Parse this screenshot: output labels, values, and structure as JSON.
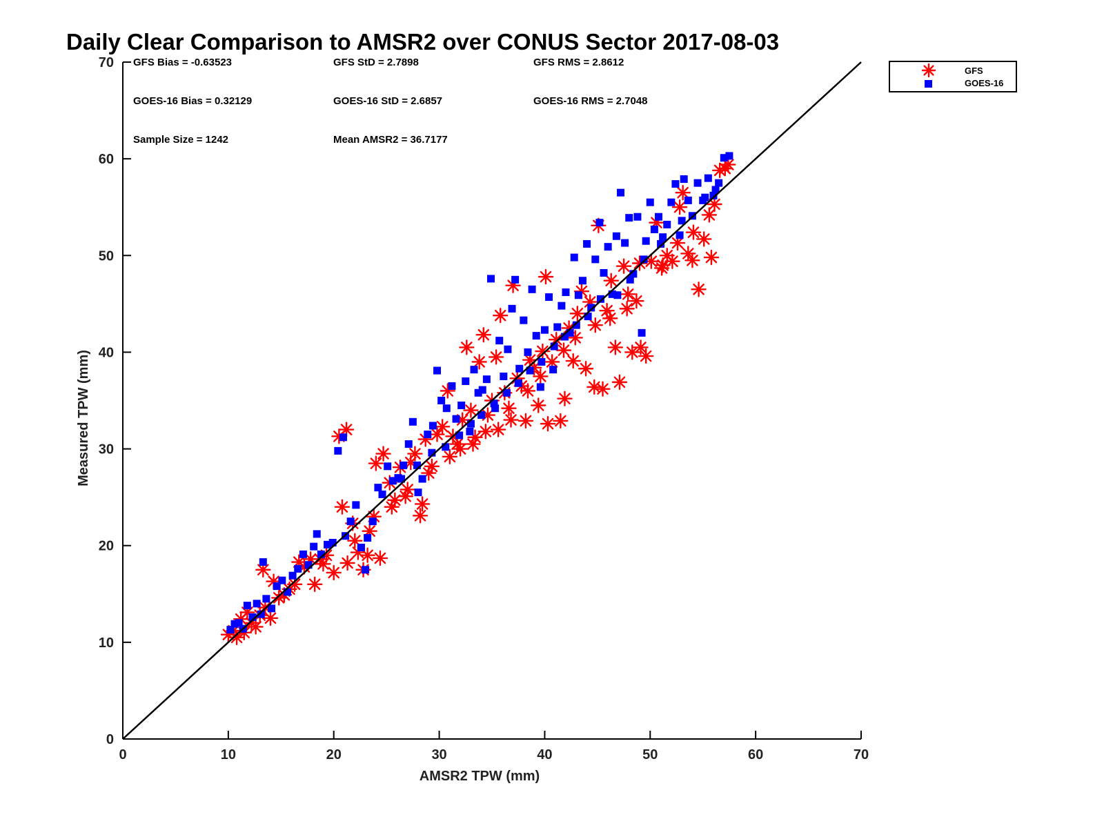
{
  "chart_data": {
    "type": "scatter",
    "title": "Daily Clear Comparison to AMSR2 over CONUS Sector 2017-08-03",
    "xlabel": "AMSR2 TPW (mm)",
    "ylabel": "Measured TPW (mm)",
    "xlim": [
      0,
      70
    ],
    "ylim": [
      0,
      70
    ],
    "xticks": [
      0,
      10,
      20,
      30,
      40,
      50,
      60,
      70
    ],
    "yticks": [
      0,
      10,
      20,
      30,
      40,
      50,
      60,
      70
    ],
    "grid": false,
    "legend_position": "outside top-right",
    "reference_line": {
      "x": [
        0,
        70
      ],
      "y": [
        0,
        70
      ],
      "color": "#000000"
    },
    "stats": [
      "GFS Bias = -0.63523",
      "GFS StD = 2.7898",
      "GFS RMS = 2.8612",
      "GOES-16 Bias = 0.32129",
      "GOES-16 StD = 2.6857",
      "GOES-16 RMS = 2.7048",
      "Sample Size = 1242",
      "Mean AMSR2 = 36.7177"
    ],
    "series": [
      {
        "name": "GFS",
        "marker": "asterisk",
        "color": "#ff0000",
        "points": [
          [
            10.0,
            10.8
          ],
          [
            10.5,
            11.2
          ],
          [
            10.8,
            10.5
          ],
          [
            11.2,
            12.4
          ],
          [
            11.5,
            11.0
          ],
          [
            11.8,
            13.1
          ],
          [
            12.2,
            12.0
          ],
          [
            12.6,
            11.6
          ],
          [
            13.0,
            12.8
          ],
          [
            13.3,
            17.5
          ],
          [
            13.5,
            13.6
          ],
          [
            14.0,
            12.5
          ],
          [
            14.3,
            16.3
          ],
          [
            14.8,
            14.6
          ],
          [
            15.3,
            14.9
          ],
          [
            15.8,
            15.5
          ],
          [
            16.3,
            16.0
          ],
          [
            16.7,
            18.3
          ],
          [
            17.2,
            17.8
          ],
          [
            17.8,
            18.6
          ],
          [
            18.2,
            16.0
          ],
          [
            18.7,
            18.6
          ],
          [
            19.3,
            19.0
          ],
          [
            20.0,
            17.2
          ],
          [
            20.5,
            31.3
          ],
          [
            20.8,
            24.0
          ],
          [
            21.2,
            32.0
          ],
          [
            21.3,
            18.2
          ],
          [
            21.8,
            22.3
          ],
          [
            22.3,
            19.3
          ],
          [
            22.8,
            17.5
          ],
          [
            23.2,
            19.0
          ],
          [
            23.4,
            21.5
          ],
          [
            23.8,
            23.0
          ],
          [
            24.0,
            28.5
          ],
          [
            24.4,
            18.7
          ],
          [
            24.7,
            29.5
          ],
          [
            25.3,
            26.5
          ],
          [
            25.8,
            24.7
          ],
          [
            26.3,
            28.1
          ],
          [
            26.8,
            25.1
          ],
          [
            27.3,
            28.6
          ],
          [
            27.7,
            29.5
          ],
          [
            28.2,
            23.1
          ],
          [
            28.4,
            24.3
          ],
          [
            28.7,
            31.0
          ],
          [
            29.3,
            28.2
          ],
          [
            29.8,
            31.5
          ],
          [
            30.3,
            32.3
          ],
          [
            30.8,
            36.0
          ],
          [
            31.3,
            31.3
          ],
          [
            31.7,
            30.5
          ],
          [
            32.2,
            33.0
          ],
          [
            32.6,
            40.5
          ],
          [
            33.0,
            34.0
          ],
          [
            33.4,
            31.2
          ],
          [
            33.8,
            39.0
          ],
          [
            34.2,
            41.8
          ],
          [
            34.6,
            33.5
          ],
          [
            35.0,
            35.0
          ],
          [
            35.4,
            39.5
          ],
          [
            35.8,
            43.8
          ],
          [
            36.2,
            35.8
          ],
          [
            36.6,
            34.2
          ],
          [
            37.0,
            46.9
          ],
          [
            37.4,
            37.3
          ],
          [
            37.8,
            36.5
          ],
          [
            38.2,
            32.9
          ],
          [
            38.6,
            39.2
          ],
          [
            39.0,
            38.4
          ],
          [
            39.4,
            34.5
          ],
          [
            39.8,
            40.1
          ],
          [
            40.1,
            47.8
          ],
          [
            40.3,
            32.6
          ],
          [
            40.7,
            39.0
          ],
          [
            41.1,
            41.3
          ],
          [
            41.5,
            32.9
          ],
          [
            41.9,
            35.2
          ],
          [
            42.3,
            42.5
          ],
          [
            42.7,
            39.1
          ],
          [
            43.1,
            44.0
          ],
          [
            43.5,
            46.3
          ],
          [
            43.9,
            38.3
          ],
          [
            44.3,
            45.2
          ],
          [
            44.7,
            36.4
          ],
          [
            45.1,
            53.1
          ],
          [
            45.5,
            36.2
          ],
          [
            45.9,
            44.3
          ],
          [
            46.3,
            47.4
          ],
          [
            46.7,
            40.5
          ],
          [
            47.1,
            36.9
          ],
          [
            47.5,
            48.9
          ],
          [
            47.9,
            46.0
          ],
          [
            48.3,
            40.0
          ],
          [
            48.7,
            45.3
          ],
          [
            49.1,
            40.5
          ],
          [
            49.6,
            39.6
          ],
          [
            50.1,
            49.4
          ],
          [
            50.6,
            53.4
          ],
          [
            51.1,
            48.7
          ],
          [
            51.6,
            50.0
          ],
          [
            52.1,
            49.4
          ],
          [
            52.6,
            51.3
          ],
          [
            53.1,
            56.5
          ],
          [
            53.6,
            50.2
          ],
          [
            54.1,
            52.4
          ],
          [
            54.6,
            46.5
          ],
          [
            55.1,
            51.7
          ],
          [
            55.6,
            54.2
          ],
          [
            56.1,
            55.3
          ],
          [
            56.6,
            58.8
          ],
          [
            57.1,
            59.0
          ],
          [
            57.4,
            59.4
          ],
          [
            55.8,
            49.8
          ],
          [
            54.0,
            49.5
          ],
          [
            52.8,
            55.0
          ],
          [
            51.2,
            49.0
          ],
          [
            49.0,
            49.2
          ],
          [
            47.8,
            44.5
          ],
          [
            46.2,
            43.5
          ],
          [
            44.8,
            42.8
          ],
          [
            42.9,
            41.5
          ],
          [
            41.8,
            40.2
          ],
          [
            39.6,
            37.5
          ],
          [
            38.4,
            36.0
          ],
          [
            36.8,
            33.0
          ],
          [
            35.6,
            32.0
          ],
          [
            34.4,
            31.8
          ],
          [
            33.2,
            30.5
          ],
          [
            32.0,
            30.0
          ],
          [
            31.0,
            29.2
          ],
          [
            29.0,
            27.5
          ],
          [
            27.0,
            25.8
          ],
          [
            25.5,
            24.0
          ],
          [
            22.0,
            20.5
          ],
          [
            19.0,
            18.1
          ]
        ]
      },
      {
        "name": "GOES-16",
        "marker": "square",
        "color": "#0000ff",
        "points": [
          [
            10.2,
            11.3
          ],
          [
            10.6,
            11.9
          ],
          [
            11.0,
            12.0
          ],
          [
            11.4,
            11.4
          ],
          [
            11.8,
            13.8
          ],
          [
            12.3,
            12.6
          ],
          [
            12.7,
            14.0
          ],
          [
            13.1,
            12.9
          ],
          [
            13.3,
            18.3
          ],
          [
            13.6,
            14.5
          ],
          [
            14.1,
            13.5
          ],
          [
            14.6,
            15.8
          ],
          [
            15.1,
            16.4
          ],
          [
            15.6,
            15.2
          ],
          [
            16.1,
            16.9
          ],
          [
            16.6,
            17.6
          ],
          [
            17.1,
            19.1
          ],
          [
            17.6,
            18.0
          ],
          [
            18.1,
            19.9
          ],
          [
            18.4,
            21.2
          ],
          [
            18.8,
            19.1
          ],
          [
            19.4,
            20.1
          ],
          [
            19.9,
            20.3
          ],
          [
            20.4,
            29.8
          ],
          [
            20.9,
            31.2
          ],
          [
            21.1,
            21.0
          ],
          [
            21.6,
            22.5
          ],
          [
            22.1,
            24.2
          ],
          [
            22.6,
            19.8
          ],
          [
            23.0,
            17.5
          ],
          [
            23.2,
            20.8
          ],
          [
            23.7,
            22.5
          ],
          [
            24.2,
            26.0
          ],
          [
            24.6,
            25.3
          ],
          [
            25.1,
            28.2
          ],
          [
            25.6,
            26.7
          ],
          [
            26.1,
            27.0
          ],
          [
            26.6,
            28.3
          ],
          [
            27.1,
            30.5
          ],
          [
            27.5,
            32.8
          ],
          [
            28.0,
            25.5
          ],
          [
            28.4,
            26.9
          ],
          [
            28.9,
            31.5
          ],
          [
            29.4,
            32.4
          ],
          [
            29.8,
            38.1
          ],
          [
            30.2,
            35.0
          ],
          [
            30.7,
            34.2
          ],
          [
            31.2,
            36.5
          ],
          [
            31.6,
            33.1
          ],
          [
            32.1,
            34.5
          ],
          [
            32.5,
            37.0
          ],
          [
            32.9,
            31.8
          ],
          [
            33.3,
            38.2
          ],
          [
            33.7,
            35.8
          ],
          [
            34.1,
            36.1
          ],
          [
            34.5,
            37.2
          ],
          [
            34.9,
            47.6
          ],
          [
            35.3,
            34.2
          ],
          [
            35.7,
            41.2
          ],
          [
            36.1,
            37.5
          ],
          [
            36.5,
            40.3
          ],
          [
            36.9,
            44.5
          ],
          [
            37.2,
            47.5
          ],
          [
            37.6,
            38.3
          ],
          [
            38.0,
            43.3
          ],
          [
            38.4,
            40.0
          ],
          [
            38.8,
            46.5
          ],
          [
            39.2,
            41.7
          ],
          [
            39.6,
            36.4
          ],
          [
            40.0,
            42.3
          ],
          [
            40.4,
            45.7
          ],
          [
            40.8,
            38.2
          ],
          [
            41.2,
            42.6
          ],
          [
            41.6,
            44.8
          ],
          [
            42.0,
            46.2
          ],
          [
            42.4,
            42.0
          ],
          [
            42.8,
            49.8
          ],
          [
            43.2,
            45.9
          ],
          [
            43.6,
            47.4
          ],
          [
            44.0,
            51.2
          ],
          [
            44.4,
            44.6
          ],
          [
            44.8,
            49.6
          ],
          [
            45.2,
            53.4
          ],
          [
            45.6,
            48.2
          ],
          [
            46.0,
            50.9
          ],
          [
            46.4,
            46.0
          ],
          [
            46.8,
            52.0
          ],
          [
            47.2,
            56.5
          ],
          [
            47.6,
            51.3
          ],
          [
            48.0,
            53.9
          ],
          [
            48.4,
            48.1
          ],
          [
            48.8,
            54.0
          ],
          [
            49.2,
            42.0
          ],
          [
            49.6,
            51.5
          ],
          [
            50.0,
            55.5
          ],
          [
            50.4,
            52.7
          ],
          [
            50.8,
            54.0
          ],
          [
            51.2,
            51.9
          ],
          [
            51.6,
            53.2
          ],
          [
            52.0,
            55.5
          ],
          [
            52.4,
            57.4
          ],
          [
            52.8,
            52.1
          ],
          [
            53.2,
            57.9
          ],
          [
            53.6,
            55.7
          ],
          [
            54.0,
            54.1
          ],
          [
            54.5,
            57.5
          ],
          [
            55.0,
            55.7
          ],
          [
            55.5,
            58.0
          ],
          [
            56.0,
            56.2
          ],
          [
            56.5,
            57.5
          ],
          [
            57.0,
            60.1
          ],
          [
            57.5,
            60.3
          ],
          [
            56.2,
            56.8
          ],
          [
            55.2,
            56.0
          ],
          [
            53.0,
            53.6
          ],
          [
            51.0,
            51.2
          ],
          [
            49.4,
            49.6
          ],
          [
            48.1,
            47.5
          ],
          [
            46.9,
            45.9
          ],
          [
            45.3,
            45.5
          ],
          [
            44.1,
            43.7
          ],
          [
            43.0,
            42.8
          ],
          [
            41.9,
            41.6
          ],
          [
            40.9,
            40.6
          ],
          [
            39.7,
            39.0
          ],
          [
            38.6,
            38.1
          ],
          [
            37.5,
            36.8
          ],
          [
            36.4,
            35.8
          ],
          [
            35.2,
            34.7
          ],
          [
            34.0,
            33.5
          ],
          [
            33.0,
            32.6
          ],
          [
            31.9,
            31.4
          ],
          [
            30.6,
            30.2
          ],
          [
            29.3,
            29.6
          ],
          [
            27.9,
            28.3
          ],
          [
            26.4,
            26.9
          ]
        ]
      }
    ]
  }
}
